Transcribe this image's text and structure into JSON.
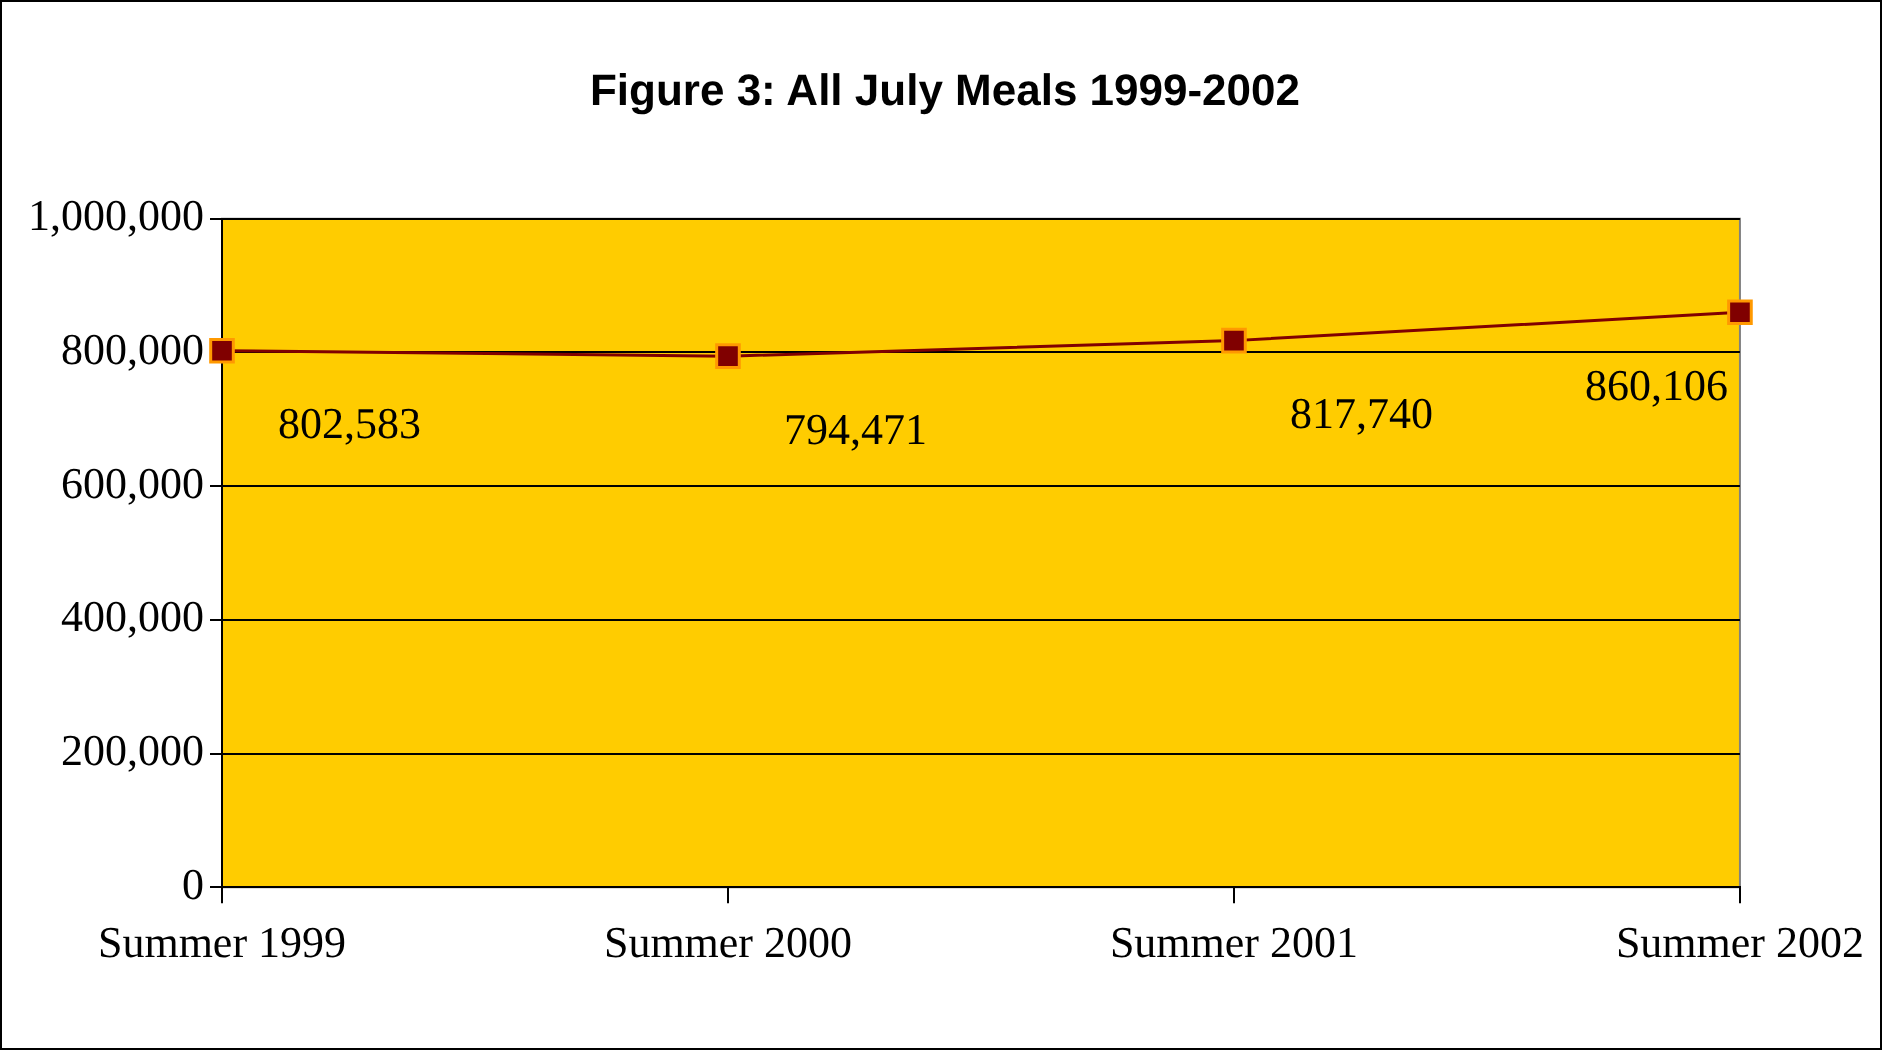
{
  "chart_data": {
    "type": "line",
    "title": "Figure 3: All July Meals 1999-2002",
    "categories": [
      "Summer 1999",
      "Summer 2000",
      "Summer 2001",
      "Summer 2002"
    ],
    "series": [
      {
        "color": "#800000",
        "values": [
          802583,
          794471,
          817740,
          860106
        ],
        "value_labels": [
          "802,583",
          "794,471",
          "817,740",
          "860,106"
        ]
      }
    ],
    "ylim": [
      0,
      1000000
    ],
    "yticks": [
      0,
      {
        "value": 200000,
        "label": "200,000"
      },
      {
        "value": 400000,
        "label": "400,000"
      },
      {
        "value": 600000,
        "label": "600,000"
      },
      {
        "value": 800000,
        "label": "800,000"
      },
      {
        "value": 1000000,
        "label": "1,000,000"
      }
    ],
    "grid": "y",
    "legend": false,
    "marker": "square",
    "line_style": "solid"
  }
}
